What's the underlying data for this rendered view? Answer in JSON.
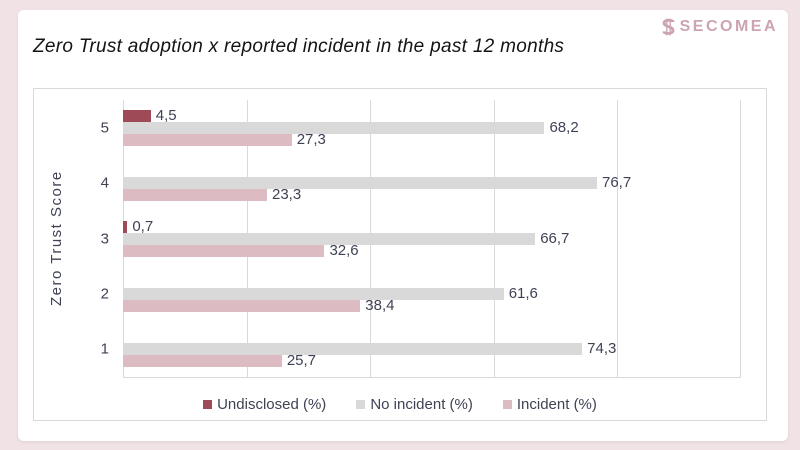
{
  "page": {
    "background_color": "#f1e3e5",
    "card_background": "#ffffff"
  },
  "header": {
    "logo_text": "SECOMEA",
    "logo_color": "#cba4b0"
  },
  "chart_data": {
    "type": "bar",
    "orientation": "horizontal",
    "title": "Zero Trust adoption x reported incident in the past 12 months",
    "xlabel": "",
    "ylabel": "Zero Trust Score",
    "categories": [
      "5",
      "4",
      "3",
      "2",
      "1"
    ],
    "series": [
      {
        "name": "Undisclosed (%)",
        "color": "#9e4a57",
        "values": [
          4.5,
          null,
          0.7,
          null,
          null
        ]
      },
      {
        "name": "No incident (%)",
        "color": "#d9d9d9",
        "values": [
          68.2,
          76.7,
          66.7,
          61.6,
          74.3
        ]
      },
      {
        "name": "Incident (%)",
        "color": "#dcbcc2",
        "values": [
          27.3,
          23.3,
          32.6,
          38.4,
          25.7
        ]
      }
    ],
    "data_labels": {
      "Undisclosed (%)": [
        "4,5",
        null,
        "0,7",
        null,
        null
      ],
      "No incident (%)": [
        "68,2",
        "76,7",
        "66,7",
        "61,6",
        "74,3"
      ],
      "Incident (%)": [
        "27,3",
        "23,3",
        "32,6",
        "38,4",
        "25,7"
      ]
    },
    "xlim": [
      0,
      100
    ],
    "grid": true,
    "grid_step": 20,
    "x_tick_labels_visible": false,
    "legend_position": "bottom",
    "decimal_separator": ",",
    "text_color": "#3f4254"
  }
}
